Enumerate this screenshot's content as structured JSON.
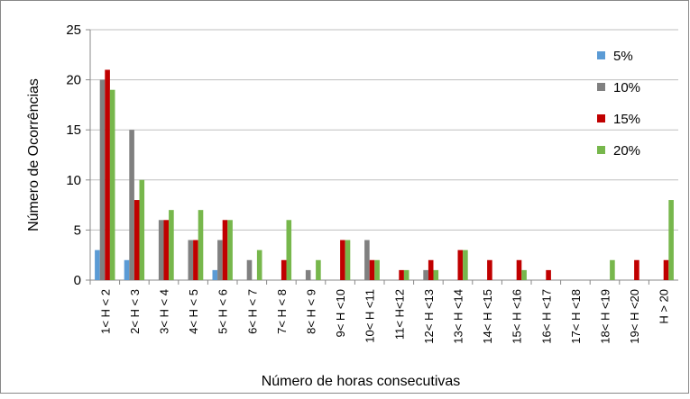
{
  "chart_data": {
    "type": "bar",
    "xlabel": "Número de horas consecutivas",
    "ylabel": "Número de Ocorrências",
    "categories": [
      "1< H < 2",
      "2< H < 3",
      "3< H < 4",
      "4< H < 5",
      "5< H < 6",
      "6< H < 7",
      "7< H < 8",
      "8< H < 9",
      "9< H <10",
      "10< H <11",
      "11< H<12",
      "12< H <13",
      "13< H <14",
      "14< H <15",
      "15< H <16",
      "16< H <17",
      "17< H <18",
      "18< H <19",
      "19< H <20",
      "H > 20"
    ],
    "series": [
      {
        "name": "5%",
        "color": "#5b9bd5",
        "values": [
          3,
          2,
          0,
          0,
          1,
          0,
          0,
          0,
          0,
          0,
          0,
          0,
          0,
          0,
          0,
          0,
          0,
          0,
          0,
          0
        ]
      },
      {
        "name": "10%",
        "color": "#808080",
        "values": [
          20,
          15,
          6,
          4,
          4,
          2,
          0,
          1,
          0,
          4,
          0,
          1,
          0,
          0,
          0,
          0,
          0,
          0,
          0,
          0
        ]
      },
      {
        "name": "15%",
        "color": "#c00000",
        "values": [
          21,
          8,
          6,
          4,
          6,
          0,
          2,
          0,
          4,
          2,
          1,
          2,
          3,
          2,
          2,
          1,
          0,
          0,
          2,
          2
        ]
      },
      {
        "name": "20%",
        "color": "#77b74c",
        "values": [
          19,
          10,
          7,
          7,
          6,
          3,
          6,
          2,
          4,
          2,
          1,
          1,
          3,
          0,
          1,
          0,
          0,
          2,
          0,
          8
        ]
      }
    ],
    "ylim": [
      0,
      25
    ],
    "yticks": [
      0,
      5,
      10,
      15,
      20,
      25
    ],
    "grid": true,
    "legend": "right"
  }
}
